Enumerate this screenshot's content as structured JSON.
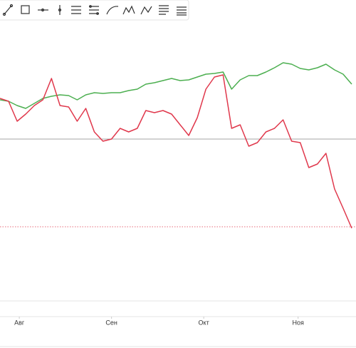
{
  "chart_data": {
    "type": "line",
    "x": [
      0,
      2,
      4,
      6,
      8,
      10,
      12,
      14,
      16,
      18,
      20,
      22,
      24,
      26,
      28,
      30,
      32,
      34,
      36,
      38,
      40,
      42,
      44,
      46,
      48,
      50,
      52,
      54,
      56,
      58,
      60,
      62,
      64,
      66,
      68,
      70,
      72,
      74,
      76,
      78,
      80,
      82
    ],
    "series": [
      {
        "color": "#4caf50",
        "values": [
          75,
          74.5,
          73,
          72,
          73.75,
          75.5,
          76.25,
          76.75,
          76.5,
          75,
          76.75,
          77.5,
          77.25,
          77.5,
          77.5,
          78.25,
          78.75,
          80.5,
          81,
          81.75,
          82.5,
          81.75,
          82,
          83,
          84,
          84.25,
          84.75,
          78.75,
          82,
          83.5,
          83.5,
          84.75,
          86.25,
          88,
          87.5,
          86,
          85.5,
          86.25,
          87.5,
          85.5,
          84,
          80.5
        ]
      },
      {
        "color": "#e0384c",
        "values": [
          75.5,
          74.5,
          67.5,
          70,
          73,
          75,
          82.5,
          73,
          72.5,
          67.5,
          72,
          63.75,
          60.5,
          61.25,
          65,
          63.75,
          65,
          71.25,
          70.5,
          71.25,
          70,
          66.25,
          62.5,
          68.75,
          78.75,
          83,
          83.75,
          65,
          66.25,
          58.75,
          60,
          63.75,
          65,
          68,
          60.5,
          60,
          51.25,
          52.5,
          56.25,
          43.75,
          37,
          30
        ]
      }
    ],
    "reference_lines": [
      {
        "value": 61.25,
        "color": "#888888",
        "style": "solid"
      },
      {
        "value": 30.5,
        "color": "#e0384c",
        "style": "dotted"
      }
    ],
    "xlim": [
      0,
      83
    ],
    "ylim": [
      0,
      100
    ],
    "xticks": [
      {
        "value": 4.5,
        "label": "Авг"
      },
      {
        "value": 26,
        "label": "Сен"
      },
      {
        "value": 47.5,
        "label": "Окт"
      },
      {
        "value": 69.5,
        "label": "Ноя"
      }
    ]
  }
}
